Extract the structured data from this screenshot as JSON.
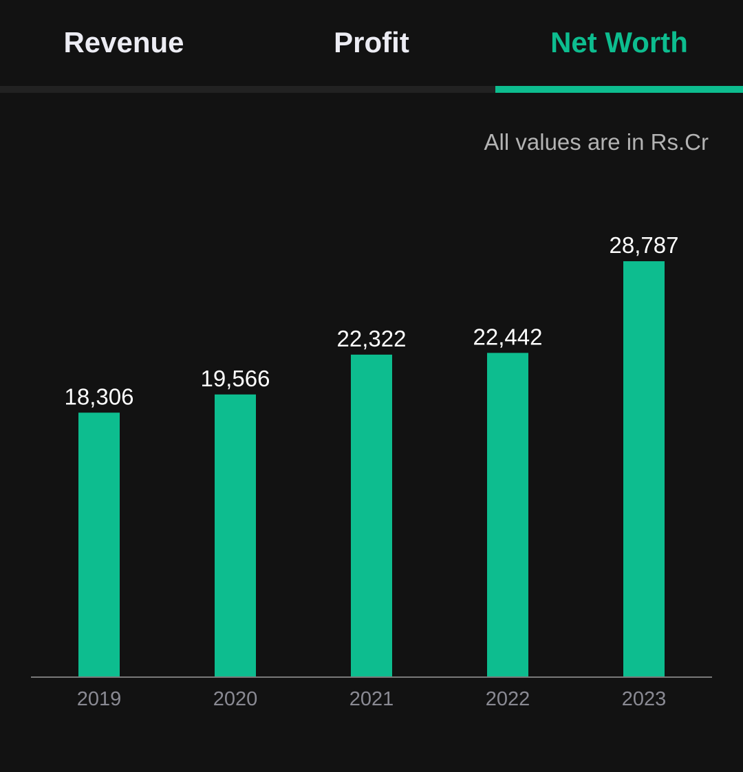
{
  "tabs": [
    {
      "label": "Revenue",
      "active": false
    },
    {
      "label": "Profit",
      "active": false
    },
    {
      "label": "Net Worth",
      "active": true
    }
  ],
  "colors": {
    "background": "#121212",
    "accent": "#0dbd8f",
    "tab_text": "#ececf3",
    "value_label": "#ffffff",
    "axis_label": "#8a8a93",
    "axis_line": "#7a7a7a"
  },
  "units_note": "All values are in Rs.Cr",
  "chart_data": {
    "type": "bar",
    "categories": [
      "2019",
      "2020",
      "2021",
      "2022",
      "2023"
    ],
    "values": [
      18306,
      19566,
      22322,
      22442,
      28787
    ],
    "value_labels": [
      "18,306",
      "19,566",
      "22,322",
      "22,442",
      "28,787"
    ],
    "title": "",
    "xlabel": "",
    "ylabel": "",
    "ylim": [
      0,
      28787
    ],
    "grid": false,
    "legend": "none"
  }
}
